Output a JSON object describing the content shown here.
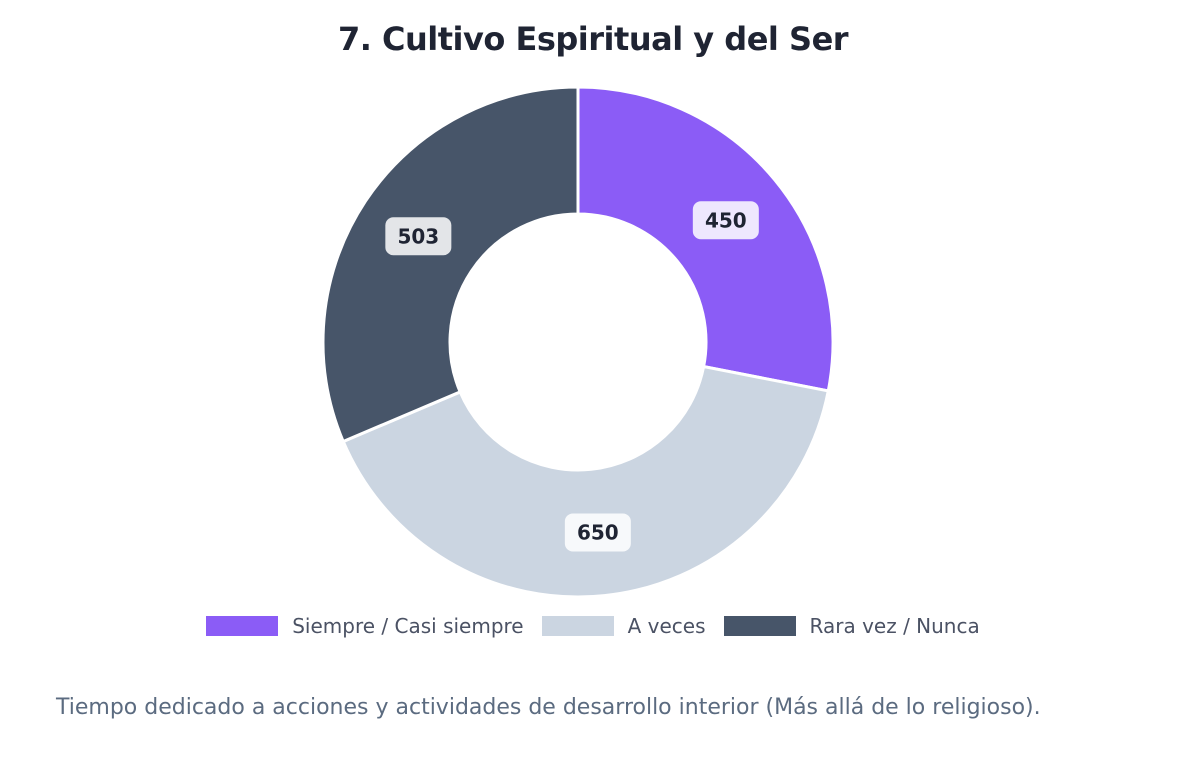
{
  "chart_data": {
    "type": "pie",
    "variant": "donut",
    "title": "7. Cultivo Espiritual y del Ser",
    "categories": [
      "Siempre / Casi siempre",
      "A veces",
      "Rara vez / Nunca"
    ],
    "values": [
      450,
      650,
      503
    ],
    "data_labels": [
      "450",
      "650",
      "503"
    ],
    "colors": [
      "#8b5cf6",
      "#cbd5e1",
      "#475569"
    ],
    "legend_position": "bottom"
  },
  "caption": "Tiempo dedicado a acciones y actividades de desarrollo interior (Más allá de lo religioso)."
}
